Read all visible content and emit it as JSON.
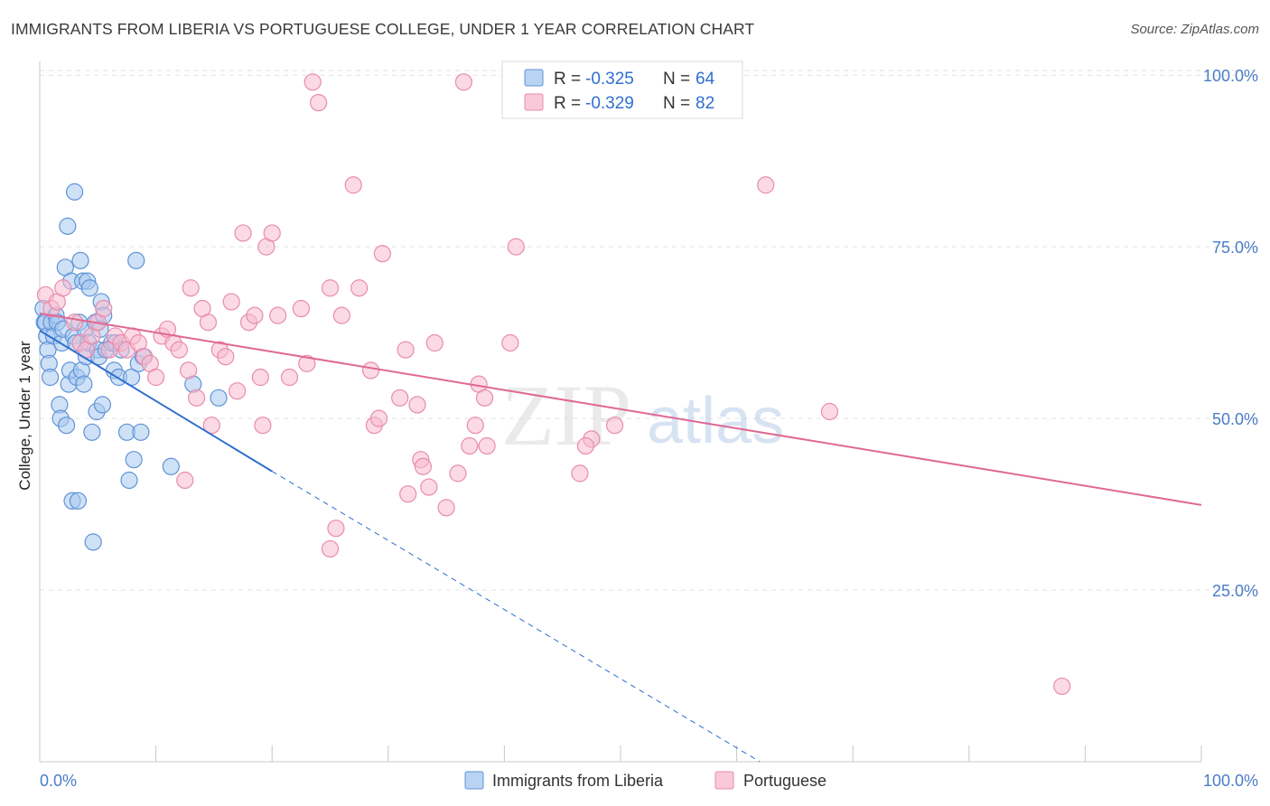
{
  "title": "IMMIGRANTS FROM LIBERIA VS PORTUGUESE COLLEGE, UNDER 1 YEAR CORRELATION CHART",
  "source": "Source: ZipAtlas.com",
  "watermark": {
    "zip": "ZIP",
    "atlas": "atlas"
  },
  "colors": {
    "blue_fill": "#a8c8f0",
    "blue_stroke": "#5f93d6",
    "blue_line": "#2e6fce",
    "pink_fill": "#f7bcd0",
    "pink_stroke": "#e98bab",
    "pink_line": "#e06892",
    "tick": "#4a7cc8",
    "grid": "#e2e2e2"
  },
  "legend": {
    "r_label": "R =",
    "n_label": "N =",
    "series": [
      {
        "r": "-0.325",
        "n": "64"
      },
      {
        "r": "-0.329",
        "n": "82"
      }
    ]
  },
  "chart_data": {
    "type": "scatter",
    "title": "IMMIGRANTS FROM LIBERIA VS PORTUGUESE COLLEGE, UNDER 1 YEAR CORRELATION CHART",
    "xlabel": "",
    "ylabel": "College, Under 1 year",
    "xlim": [
      0,
      100
    ],
    "ylim": [
      0,
      102
    ],
    "x_tick_labels": [
      "0.0%",
      "100.0%"
    ],
    "y_ticks": [
      25,
      50,
      75,
      100
    ],
    "y_tick_labels": [
      "25.0%",
      "50.0%",
      "75.0%",
      "100.0%"
    ],
    "grid": true,
    "legend_placement": "top-center",
    "series": [
      {
        "name": "Immigrants from Liberia",
        "color": "#a8c8f0",
        "trend": {
          "x0": 0,
          "y0": 62.8,
          "x1": 20,
          "y1": 42.3,
          "dash_to_x": 62,
          "dash_to_y": 0
        },
        "points": [
          [
            0.3,
            66
          ],
          [
            0.4,
            64
          ],
          [
            0.5,
            64
          ],
          [
            0.6,
            62
          ],
          [
            0.7,
            60
          ],
          [
            0.8,
            58
          ],
          [
            0.9,
            56
          ],
          [
            1.0,
            64
          ],
          [
            1.2,
            62
          ],
          [
            1.4,
            65
          ],
          [
            1.5,
            64
          ],
          [
            1.7,
            52
          ],
          [
            1.8,
            50
          ],
          [
            1.9,
            61
          ],
          [
            2.0,
            63
          ],
          [
            2.2,
            72
          ],
          [
            2.3,
            49
          ],
          [
            2.4,
            78
          ],
          [
            2.5,
            55
          ],
          [
            2.6,
            57
          ],
          [
            2.7,
            70
          ],
          [
            2.8,
            38
          ],
          [
            2.9,
            62
          ],
          [
            3.0,
            83
          ],
          [
            3.1,
            61
          ],
          [
            3.2,
            56
          ],
          [
            3.3,
            38
          ],
          [
            3.4,
            64
          ],
          [
            3.5,
            73
          ],
          [
            3.6,
            57
          ],
          [
            3.7,
            70
          ],
          [
            3.8,
            55
          ],
          [
            3.9,
            63
          ],
          [
            4.0,
            59
          ],
          [
            4.1,
            70
          ],
          [
            4.2,
            61
          ],
          [
            4.3,
            69
          ],
          [
            4.5,
            48
          ],
          [
            4.6,
            32
          ],
          [
            4.8,
            64
          ],
          [
            4.9,
            51
          ],
          [
            5.0,
            60
          ],
          [
            5.1,
            59
          ],
          [
            5.3,
            67
          ],
          [
            5.4,
            52
          ],
          [
            5.5,
            65
          ],
          [
            5.7,
            60
          ],
          [
            6.2,
            61
          ],
          [
            6.4,
            57
          ],
          [
            6.5,
            61
          ],
          [
            6.8,
            56
          ],
          [
            7.0,
            60
          ],
          [
            7.5,
            48
          ],
          [
            7.7,
            41
          ],
          [
            7.9,
            56
          ],
          [
            8.1,
            44
          ],
          [
            8.3,
            73
          ],
          [
            8.5,
            58
          ],
          [
            8.7,
            48
          ],
          [
            8.9,
            59
          ],
          [
            11.3,
            43
          ],
          [
            13.2,
            55
          ],
          [
            15.4,
            53
          ],
          [
            5.2,
            63
          ]
        ]
      },
      {
        "name": "Portuguese",
        "color": "#f7bcd0",
        "trend": {
          "x0": 0,
          "y0": 65.3,
          "x1": 100,
          "y1": 37.4
        },
        "points": [
          [
            0.5,
            68
          ],
          [
            1.0,
            66
          ],
          [
            1.5,
            67
          ],
          [
            2.0,
            69
          ],
          [
            3.0,
            64
          ],
          [
            3.5,
            61
          ],
          [
            4.0,
            60
          ],
          [
            4.5,
            62
          ],
          [
            5.0,
            64
          ],
          [
            5.5,
            66
          ],
          [
            6.0,
            60
          ],
          [
            6.5,
            62
          ],
          [
            7.0,
            61
          ],
          [
            7.5,
            60
          ],
          [
            8.0,
            62
          ],
          [
            8.5,
            61
          ],
          [
            9.0,
            59
          ],
          [
            9.5,
            58
          ],
          [
            10.0,
            56
          ],
          [
            10.5,
            62
          ],
          [
            11.0,
            63
          ],
          [
            11.5,
            61
          ],
          [
            12.0,
            60
          ],
          [
            12.5,
            41
          ],
          [
            12.8,
            57
          ],
          [
            13.0,
            69
          ],
          [
            13.5,
            53
          ],
          [
            14.0,
            66
          ],
          [
            14.5,
            64
          ],
          [
            14.8,
            49
          ],
          [
            15.5,
            60
          ],
          [
            16.0,
            59
          ],
          [
            16.5,
            67
          ],
          [
            17.0,
            54
          ],
          [
            17.5,
            77
          ],
          [
            18.0,
            64
          ],
          [
            18.5,
            65
          ],
          [
            19.0,
            56
          ],
          [
            19.2,
            49
          ],
          [
            19.5,
            75
          ],
          [
            20.0,
            77
          ],
          [
            20.5,
            65
          ],
          [
            21.5,
            56
          ],
          [
            22.5,
            66
          ],
          [
            23.0,
            58
          ],
          [
            23.5,
            99
          ],
          [
            24.0,
            96
          ],
          [
            25.0,
            69
          ],
          [
            25.5,
            34
          ],
          [
            25.0,
            31
          ],
          [
            26.0,
            65
          ],
          [
            27.0,
            84
          ],
          [
            27.5,
            69
          ],
          [
            28.5,
            57
          ],
          [
            28.8,
            49
          ],
          [
            29.2,
            50
          ],
          [
            29.5,
            74
          ],
          [
            31.0,
            53
          ],
          [
            31.5,
            60
          ],
          [
            31.7,
            39
          ],
          [
            32.5,
            52
          ],
          [
            32.8,
            44
          ],
          [
            33.0,
            43
          ],
          [
            33.5,
            40
          ],
          [
            34.0,
            61
          ],
          [
            35.0,
            37
          ],
          [
            36.0,
            42
          ],
          [
            37.0,
            46
          ],
          [
            37.5,
            49
          ],
          [
            37.8,
            55
          ],
          [
            38.3,
            53
          ],
          [
            38.5,
            46
          ],
          [
            40.5,
            61
          ],
          [
            41.0,
            75
          ],
          [
            46.5,
            42
          ],
          [
            47.5,
            47
          ],
          [
            49.5,
            49
          ],
          [
            62.5,
            84
          ],
          [
            68.0,
            51
          ],
          [
            88.0,
            11
          ],
          [
            47.0,
            46
          ],
          [
            36.5,
            99
          ]
        ]
      }
    ]
  }
}
